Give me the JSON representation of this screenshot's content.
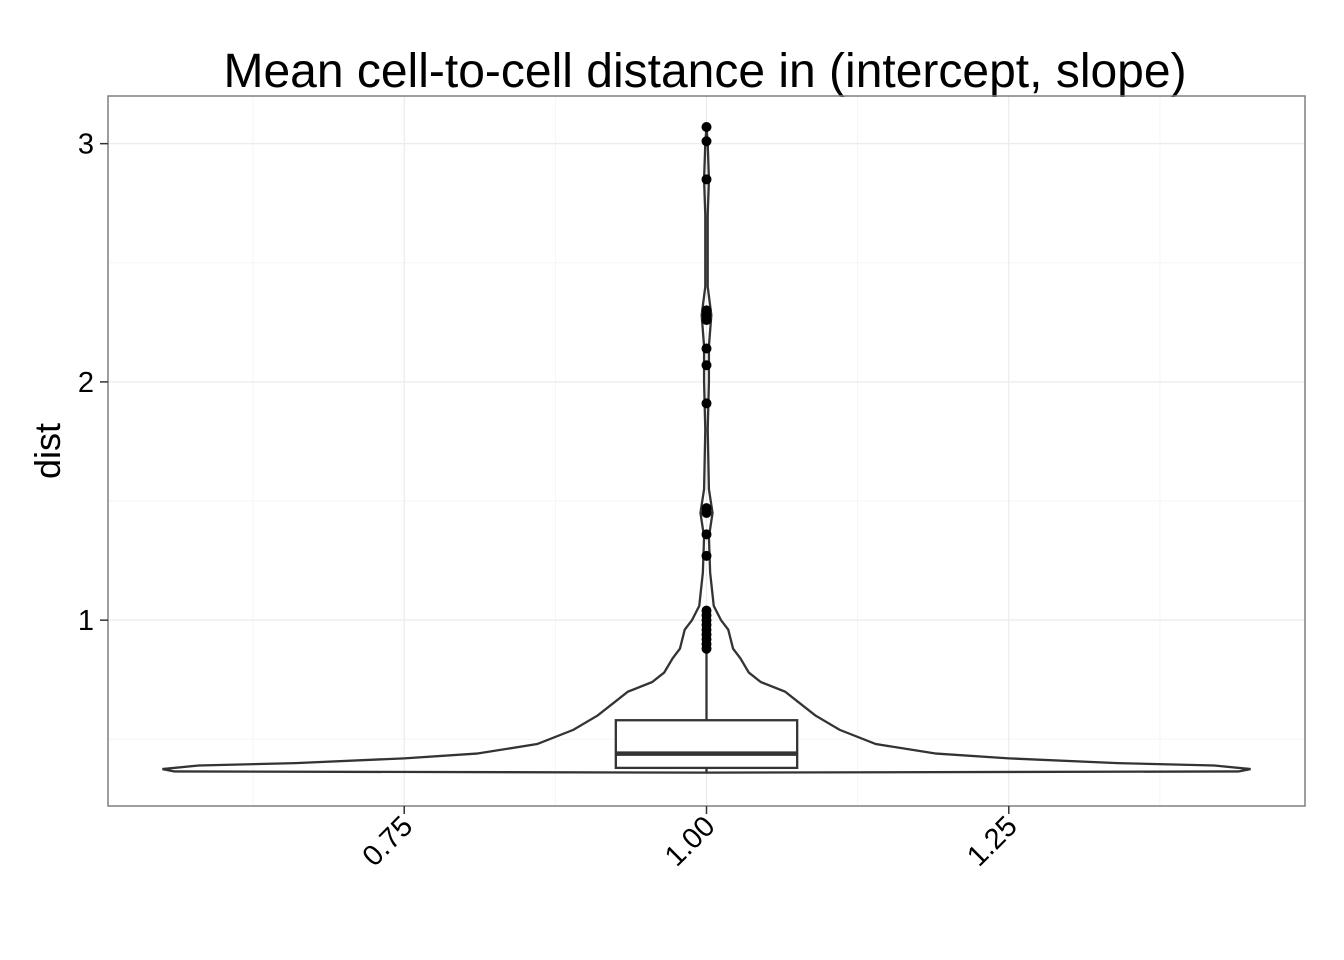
{
  "chart_data": {
    "type": "violin",
    "title": "Mean cell-to-cell distance in (intercept, slope)",
    "xlabel": "",
    "ylabel": "dist",
    "x_ticks": [
      {
        "value": 0.75,
        "label": "0.75"
      },
      {
        "value": 1.0,
        "label": "1.00"
      },
      {
        "value": 1.25,
        "label": "1.25"
      }
    ],
    "y_ticks": [
      {
        "value": 1,
        "label": "1"
      },
      {
        "value": 2,
        "label": "2"
      },
      {
        "value": 3,
        "label": "3"
      }
    ],
    "xlim": [
      0.505,
      1.495
    ],
    "ylim": [
      0.22,
      3.2
    ],
    "grid": true,
    "x_tick_label_rotation_deg": -45,
    "violin": {
      "x": 1.0,
      "profile": [
        {
          "y": 0.36,
          "halfwidth": 0.0
        },
        {
          "y": 0.365,
          "halfwidth": 0.44
        },
        {
          "y": 0.375,
          "halfwidth": 0.45
        },
        {
          "y": 0.39,
          "halfwidth": 0.42
        },
        {
          "y": 0.4,
          "halfwidth": 0.34
        },
        {
          "y": 0.42,
          "halfwidth": 0.25
        },
        {
          "y": 0.44,
          "halfwidth": 0.19
        },
        {
          "y": 0.48,
          "halfwidth": 0.14
        },
        {
          "y": 0.54,
          "halfwidth": 0.11
        },
        {
          "y": 0.6,
          "halfwidth": 0.09
        },
        {
          "y": 0.66,
          "halfwidth": 0.075
        },
        {
          "y": 0.7,
          "halfwidth": 0.065
        },
        {
          "y": 0.74,
          "halfwidth": 0.045
        },
        {
          "y": 0.78,
          "halfwidth": 0.035
        },
        {
          "y": 0.84,
          "halfwidth": 0.028
        },
        {
          "y": 0.88,
          "halfwidth": 0.022
        },
        {
          "y": 0.92,
          "halfwidth": 0.02
        },
        {
          "y": 0.96,
          "halfwidth": 0.018
        },
        {
          "y": 1.0,
          "halfwidth": 0.012
        },
        {
          "y": 1.06,
          "halfwidth": 0.006
        },
        {
          "y": 1.2,
          "halfwidth": 0.003
        },
        {
          "y": 1.35,
          "halfwidth": 0.002
        },
        {
          "y": 1.45,
          "halfwidth": 0.005
        },
        {
          "y": 1.55,
          "halfwidth": 0.002
        },
        {
          "y": 1.8,
          "halfwidth": 0.001
        },
        {
          "y": 2.0,
          "halfwidth": 0.002
        },
        {
          "y": 2.15,
          "halfwidth": 0.002
        },
        {
          "y": 2.28,
          "halfwidth": 0.004
        },
        {
          "y": 2.4,
          "halfwidth": 0.001
        },
        {
          "y": 2.7,
          "halfwidth": 0.001
        },
        {
          "y": 2.85,
          "halfwidth": 0.002
        },
        {
          "y": 3.0,
          "halfwidth": 0.001
        },
        {
          "y": 3.07,
          "halfwidth": 0.0
        }
      ]
    },
    "boxplot": {
      "x": 1.0,
      "halfwidth": 0.075,
      "whisker_low": 0.36,
      "q1": 0.38,
      "median": 0.44,
      "q3": 0.58,
      "whisker_high": 0.87,
      "outliers": [
        0.88,
        0.9,
        0.92,
        0.94,
        0.96,
        0.98,
        1.0,
        1.02,
        1.04,
        1.27,
        1.36,
        1.45,
        1.47,
        1.91,
        2.07,
        2.14,
        2.26,
        2.28,
        2.3,
        2.85,
        3.01,
        3.07
      ]
    },
    "colors": {
      "line": "#333333",
      "points": "#000000",
      "panel_border": "#7f7f7f",
      "grid": "#ebebeb"
    }
  }
}
